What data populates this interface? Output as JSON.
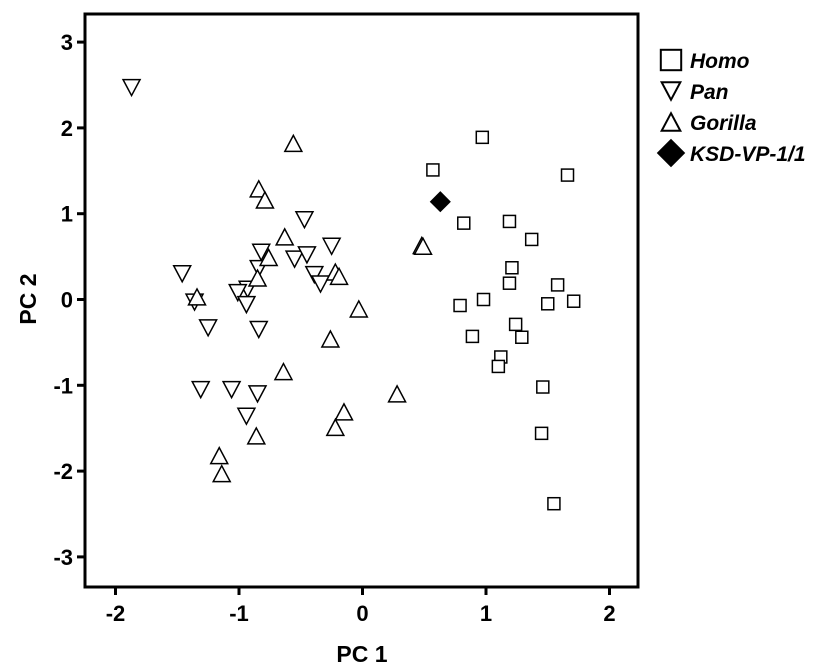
{
  "chart_data": {
    "type": "scatter",
    "title": "",
    "xlabel": "PC 1",
    "ylabel": "PC 2",
    "xlim": [
      -2.3,
      2.3
    ],
    "ylim": [
      -3.35,
      3.35
    ],
    "xticks": [
      -2,
      -1,
      0,
      1,
      2
    ],
    "yticks": [
      -3,
      -2,
      -1,
      0,
      1,
      2,
      3
    ],
    "xtick_labels": [
      "-2",
      "-1",
      "0",
      "1",
      "2"
    ],
    "ytick_labels": [
      "-3",
      "-2",
      "-1",
      "0",
      "1",
      "2",
      "3"
    ],
    "grid": false,
    "legend_position": "right",
    "series": [
      {
        "name": "Homo",
        "marker": "square",
        "points": [
          [
            0.97,
            1.89
          ],
          [
            0.57,
            1.51
          ],
          [
            1.66,
            1.45
          ],
          [
            0.82,
            0.89
          ],
          [
            1.19,
            0.91
          ],
          [
            1.37,
            0.7
          ],
          [
            1.21,
            0.37
          ],
          [
            1.19,
            0.19
          ],
          [
            1.58,
            0.17
          ],
          [
            0.98,
            0.0
          ],
          [
            0.79,
            -0.07
          ],
          [
            1.5,
            -0.05
          ],
          [
            1.71,
            -0.02
          ],
          [
            1.24,
            -0.29
          ],
          [
            0.89,
            -0.43
          ],
          [
            1.29,
            -0.44
          ],
          [
            1.12,
            -0.67
          ],
          [
            1.1,
            -0.78
          ],
          [
            1.46,
            -1.02
          ],
          [
            1.45,
            -1.56
          ],
          [
            1.55,
            -2.38
          ]
        ]
      },
      {
        "name": "Pan",
        "marker": "triangle-down",
        "points": [
          [
            -1.87,
            2.47
          ],
          [
            -0.47,
            0.93
          ],
          [
            -0.25,
            0.62
          ],
          [
            -0.82,
            0.55
          ],
          [
            -0.55,
            0.47
          ],
          [
            -0.45,
            0.52
          ],
          [
            -0.84,
            0.36
          ],
          [
            -1.46,
            0.3
          ],
          [
            -0.39,
            0.29
          ],
          [
            -0.93,
            0.12
          ],
          [
            -0.34,
            0.18
          ],
          [
            -1.01,
            0.08
          ],
          [
            -1.36,
            -0.03
          ],
          [
            -0.94,
            -0.06
          ],
          [
            -1.25,
            -0.33
          ],
          [
            -0.84,
            -0.35
          ],
          [
            -1.31,
            -1.05
          ],
          [
            -1.06,
            -1.05
          ],
          [
            -0.85,
            -1.1
          ],
          [
            -0.94,
            -1.36
          ]
        ]
      },
      {
        "name": "Gorilla",
        "marker": "triangle-up",
        "points": [
          [
            -0.56,
            1.82
          ],
          [
            -0.84,
            1.29
          ],
          [
            -0.79,
            1.16
          ],
          [
            -0.63,
            0.73
          ],
          [
            0.48,
            0.63
          ],
          [
            0.49,
            0.62
          ],
          [
            -0.76,
            0.49
          ],
          [
            -0.22,
            0.32
          ],
          [
            -0.19,
            0.27
          ],
          [
            -0.85,
            0.25
          ],
          [
            -1.34,
            0.03
          ],
          [
            -0.03,
            -0.11
          ],
          [
            -0.26,
            -0.46
          ],
          [
            -0.64,
            -0.84
          ],
          [
            0.28,
            -1.1
          ],
          [
            -0.15,
            -1.31
          ],
          [
            -0.22,
            -1.49
          ],
          [
            -0.86,
            -1.59
          ],
          [
            -1.16,
            -1.82
          ],
          [
            -1.14,
            -2.03
          ]
        ]
      },
      {
        "name": "KSD-VP-1/1",
        "marker": "diamond",
        "points": [
          [
            0.63,
            1.14
          ]
        ]
      }
    ]
  }
}
